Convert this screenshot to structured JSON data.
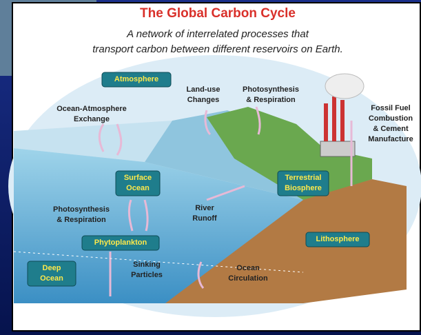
{
  "title": "The Global Carbon Cycle",
  "subtitle": [
    "A network of interrelated processes that",
    "transport carbon between different reservoirs on Earth."
  ],
  "labels": [
    {
      "lines": [
        "Atmosphere"
      ]
    },
    {
      "lines": [
        "Land-use",
        "Changes"
      ]
    },
    {
      "lines": [
        "Photosynthesis",
        "& Respiration"
      ]
    },
    {
      "lines": [
        "Ocean-Atmosphere",
        "Exchange"
      ]
    },
    {
      "lines": [
        "Fossil Fuel",
        "Combustion",
        "& Cement",
        "Manufacture"
      ]
    },
    {
      "lines": [
        "Surface",
        "Ocean"
      ]
    },
    {
      "lines": [
        "Terrestrial",
        "Biosphere"
      ]
    },
    {
      "lines": [
        "Photosynthesis",
        "& Respiration"
      ]
    },
    {
      "lines": [
        "River",
        "Runoff"
      ]
    },
    {
      "lines": [
        "Phytoplankton"
      ]
    },
    {
      "lines": [
        "Lithosphere"
      ]
    },
    {
      "lines": [
        "Deep",
        "Ocean"
      ]
    },
    {
      "lines": [
        "Sinking",
        "Particles"
      ]
    },
    {
      "lines": [
        "Ocean",
        "Circulation"
      ]
    }
  ]
}
